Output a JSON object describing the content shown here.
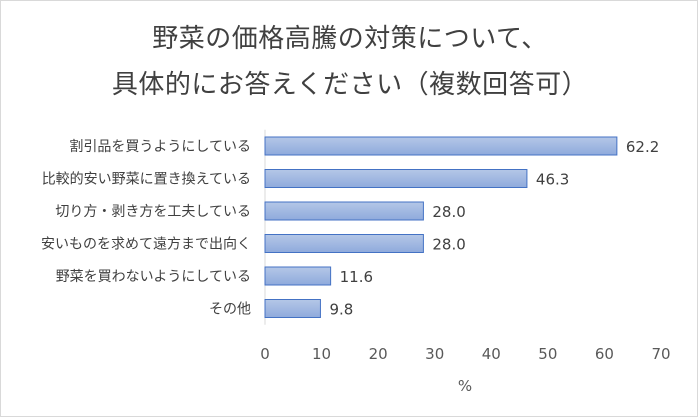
{
  "chart_data": {
    "type": "bar",
    "orientation": "horizontal",
    "title_lines": [
      "野菜の価格高騰の対策について、",
      "具体的にお答えください（複数回答可）"
    ],
    "categories": [
      "割引品を買うようにしている",
      "比較的安い野菜に置き換えている",
      "切り方・剥き方を工夫している",
      "安いものを求めて遠方まで出向く",
      "野菜を買わないようにしている",
      "その他"
    ],
    "values": [
      62.2,
      46.3,
      28.0,
      28.0,
      11.6,
      9.8
    ],
    "value_labels": [
      "62.2",
      "46.3",
      "28.0",
      "28.0",
      "11.6",
      "9.8"
    ],
    "xlabel": "%",
    "xlim": [
      0,
      70
    ],
    "xticks": [
      0,
      10,
      20,
      30,
      40,
      50,
      60,
      70
    ],
    "legend": "none",
    "bar_color": "#8faadc",
    "bar_color_light": "#b4c7e7",
    "bar_border": "#4472c4"
  }
}
